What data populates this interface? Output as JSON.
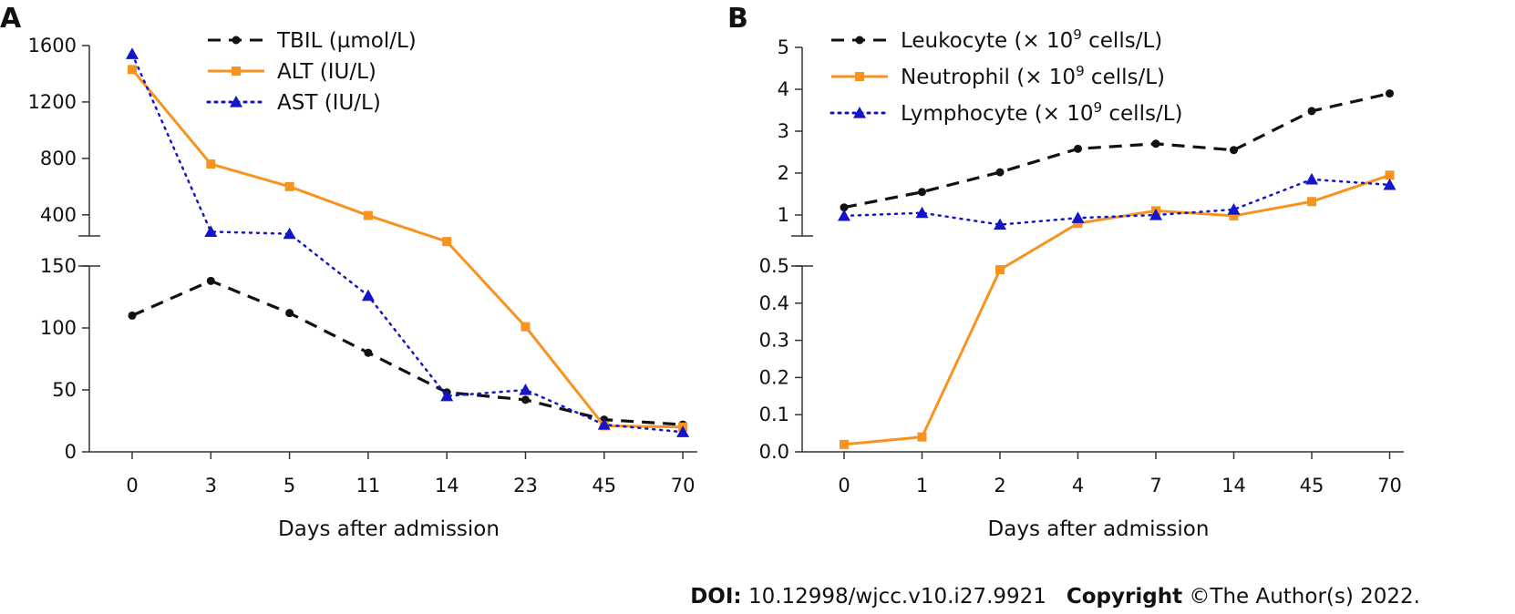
{
  "footer": {
    "doi_label": "DOI:",
    "doi_value": "10.12998/wjcc.v10.i27.9921",
    "copyright_label": "Copyright",
    "copyright_value": "©The Author(s) 2022."
  },
  "chart_data": [
    {
      "type": "line",
      "panel_label": "A",
      "xlabel": "Days after admission",
      "categories": [
        "0",
        "3",
        "5",
        "11",
        "14",
        "23",
        "45",
        "70"
      ],
      "y_broken_axis": {
        "lower": {
          "ylim": [
            0,
            150
          ],
          "ticks": [
            "0",
            "50",
            "100",
            "150"
          ],
          "tick_values": [
            0,
            50,
            100,
            150
          ]
        },
        "upper": {
          "ylim": [
            250,
            1600
          ],
          "ticks": [
            "400",
            "800",
            "1200",
            "1600"
          ],
          "tick_values": [
            400,
            800,
            1200,
            1600
          ]
        }
      },
      "legend_position": "top",
      "series": [
        {
          "name": "TBIL (µmol/L)",
          "color": "#111111",
          "style": "dashed",
          "marker": "circle",
          "values": [
            110,
            138,
            112,
            80,
            48,
            42,
            26,
            22
          ]
        },
        {
          "name": "ALT (IU/L)",
          "color": "#f7931e",
          "style": "solid",
          "marker": "square",
          "values": [
            1430,
            760,
            600,
            395,
            210,
            101,
            21,
            20
          ]
        },
        {
          "name": "AST (IU/L)",
          "color": "#1515c8",
          "style": "dotted",
          "marker": "triangle",
          "values": [
            1540,
            280,
            265,
            126,
            45,
            50,
            22,
            16
          ]
        }
      ]
    },
    {
      "type": "line",
      "panel_label": "B",
      "xlabel": "Days after admission",
      "categories": [
        "0",
        "1",
        "2",
        "4",
        "7",
        "14",
        "45",
        "70"
      ],
      "y_broken_axis": {
        "lower": {
          "ylim": [
            0,
            0.5
          ],
          "ticks": [
            "0.0",
            "0.1",
            "0.2",
            "0.3",
            "0.4",
            "0.5"
          ],
          "tick_values": [
            0,
            0.1,
            0.2,
            0.3,
            0.4,
            0.5
          ]
        },
        "upper": {
          "ylim": [
            0.5,
            5
          ],
          "ticks": [
            "1",
            "2",
            "3",
            "4",
            "5"
          ],
          "tick_values": [
            1,
            2,
            3,
            4,
            5
          ]
        }
      },
      "legend_position": "top",
      "series": [
        {
          "name": "Leukocyte (× 10⁹ cells/L)",
          "name_main": "Leukocyte (× 10",
          "name_sup": "9",
          "name_tail": " cells/L)",
          "color": "#111111",
          "style": "dashed",
          "marker": "circle",
          "values": [
            1.18,
            1.55,
            2.02,
            2.58,
            2.7,
            2.55,
            3.48,
            3.9
          ]
        },
        {
          "name": "Neutrophil (× 10⁹ cells/L)",
          "name_main": "Neutrophil (× 10",
          "name_sup": "9",
          "name_tail": " cells/L)",
          "color": "#f7931e",
          "style": "solid",
          "marker": "square",
          "values": [
            0.02,
            0.04,
            0.49,
            0.8,
            1.1,
            0.98,
            1.32,
            1.95
          ]
        },
        {
          "name": "Lymphocyte (× 10⁹ cells/L)",
          "name_main": "Lymphocyte (× 10",
          "name_sup": "9",
          "name_tail": " cells/L)",
          "color": "#1515c8",
          "style": "dotted",
          "marker": "triangle",
          "values": [
            0.98,
            1.05,
            0.77,
            0.93,
            1.0,
            1.13,
            1.85,
            1.72
          ]
        }
      ]
    }
  ]
}
